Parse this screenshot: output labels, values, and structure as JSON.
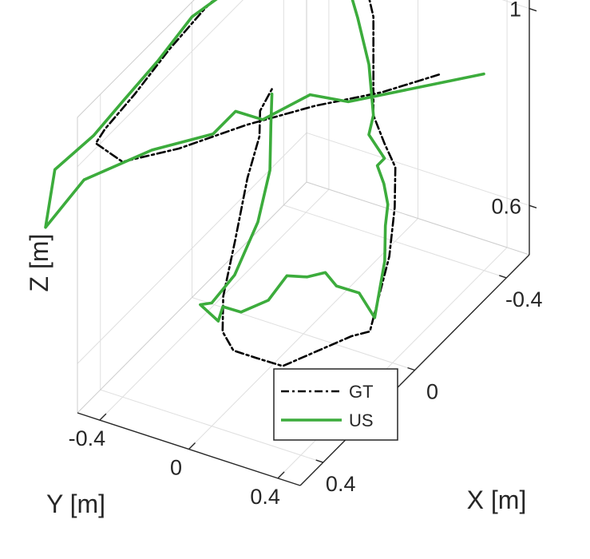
{
  "chart_data": {
    "type": "line",
    "projection": "3d",
    "title": "",
    "xlabel": "X [m]",
    "ylabel": "Y [m]",
    "zlabel": "Z [m]",
    "xlim": [
      -0.5,
      0.5
    ],
    "ylim": [
      -0.5,
      0.5
    ],
    "zlim": [
      0.5,
      1.1
    ],
    "x_ticks": [
      -0.4,
      0,
      0.4
    ],
    "x_tick_labels": [
      "-0.4",
      "0",
      "0.4"
    ],
    "y_ticks": [
      -0.4,
      0,
      0.4
    ],
    "y_tick_labels": [
      "-0.4",
      "0",
      "0.4"
    ],
    "z_ticks": [
      0.6,
      1
    ],
    "z_tick_labels": [
      "0.6",
      "1"
    ],
    "grid": true,
    "legend": {
      "position": "bottom-center",
      "entries": [
        "GT",
        "US"
      ]
    },
    "series": [
      {
        "name": "GT",
        "color": "#000000",
        "line_style": "dash-dot",
        "points": [
          [
            -0.3,
            0.3,
            0.93
          ],
          [
            -0.15,
            0.2,
            0.95
          ],
          [
            0.0,
            0.05,
            0.97
          ],
          [
            0.15,
            -0.1,
            0.98
          ],
          [
            0.3,
            -0.25,
            0.98
          ],
          [
            0.42,
            -0.38,
            0.99
          ],
          [
            0.42,
            -0.5,
            1.01
          ],
          [
            0.38,
            -0.5,
            1.02
          ],
          [
            0.25,
            -0.5,
            1.03
          ],
          [
            0.1,
            -0.5,
            1.05
          ],
          [
            -0.05,
            -0.5,
            1.06
          ],
          [
            -0.2,
            -0.5,
            1.06
          ],
          [
            -0.35,
            -0.5,
            1.05
          ],
          [
            -0.5,
            -0.45,
            1.02
          ],
          [
            -0.5,
            -0.35,
            1.0
          ],
          [
            -0.5,
            -0.25,
            0.97
          ],
          [
            -0.5,
            -0.2,
            0.88
          ],
          [
            -0.5,
            -0.2,
            0.78
          ],
          [
            -0.5,
            -0.2,
            0.68
          ],
          [
            -0.5,
            -0.15,
            0.63
          ],
          [
            -0.45,
            -0.05,
            0.62
          ],
          [
            -0.35,
            0.05,
            0.6
          ],
          [
            -0.2,
            0.18,
            0.59
          ],
          [
            -0.05,
            0.28,
            0.58
          ],
          [
            0.05,
            0.35,
            0.58
          ],
          [
            0.15,
            0.37,
            0.62
          ],
          [
            0.3,
            0.37,
            0.66
          ],
          [
            0.45,
            0.37,
            0.7
          ],
          [
            0.5,
            0.3,
            0.73
          ],
          [
            0.5,
            0.2,
            0.73
          ],
          [
            0.45,
            0.1,
            0.73
          ],
          [
            0.35,
            0.0,
            0.74
          ],
          [
            0.2,
            -0.1,
            0.77
          ],
          [
            0.05,
            -0.2,
            0.81
          ],
          [
            -0.1,
            -0.3,
            0.81
          ],
          [
            -0.2,
            -0.4,
            0.8
          ],
          [
            -0.3,
            -0.45,
            0.79
          ]
        ]
      },
      {
        "name": "US",
        "color": "#3cac3c",
        "line_style": "solid",
        "points": [
          [
            -0.35,
            0.45,
            0.93
          ],
          [
            -0.2,
            0.3,
            0.95
          ],
          [
            -0.05,
            0.15,
            0.97
          ],
          [
            0.0,
            0.03,
            0.99
          ],
          [
            0.1,
            -0.08,
            0.97
          ],
          [
            0.15,
            -0.15,
            1.0
          ],
          [
            0.2,
            -0.2,
            0.97
          ],
          [
            0.35,
            -0.32,
            0.99
          ],
          [
            0.52,
            -0.45,
            0.99
          ],
          [
            0.62,
            -0.52,
            0.93
          ],
          [
            0.55,
            -0.55,
            1.01
          ],
          [
            0.43,
            -0.5,
            1.03
          ],
          [
            0.3,
            -0.5,
            1.04
          ],
          [
            0.15,
            -0.5,
            1.05
          ],
          [
            0.0,
            -0.5,
            1.07
          ],
          [
            -0.15,
            -0.5,
            1.05
          ],
          [
            -0.3,
            -0.5,
            1.03
          ],
          [
            -0.42,
            -0.45,
            1.0
          ],
          [
            -0.47,
            -0.4,
            0.99
          ],
          [
            -0.43,
            -0.38,
            0.98
          ],
          [
            -0.48,
            -0.3,
            0.95
          ],
          [
            -0.48,
            -0.25,
            0.88
          ],
          [
            -0.5,
            -0.22,
            0.78
          ],
          [
            -0.5,
            -0.2,
            0.68
          ],
          [
            -0.48,
            -0.2,
            0.65
          ],
          [
            -0.5,
            -0.15,
            0.6
          ],
          [
            -0.42,
            -0.1,
            0.63
          ],
          [
            -0.4,
            -0.05,
            0.61
          ],
          [
            -0.32,
            0.05,
            0.62
          ],
          [
            -0.28,
            0.08,
            0.6
          ],
          [
            -0.18,
            0.18,
            0.59
          ],
          [
            -0.05,
            0.28,
            0.58
          ],
          [
            0.0,
            0.32,
            0.58
          ],
          [
            0.0,
            0.25,
            0.62
          ],
          [
            0.05,
            0.2,
            0.65
          ],
          [
            0.05,
            0.15,
            0.67
          ],
          [
            0.1,
            0.12,
            0.68
          ],
          [
            0.15,
            0.08,
            0.7
          ],
          [
            0.25,
            0.1,
            0.7
          ],
          [
            0.35,
            0.08,
            0.72
          ],
          [
            0.4,
            0.05,
            0.75
          ],
          [
            0.42,
            0.05,
            0.73
          ],
          [
            0.45,
            0.0,
            0.77
          ],
          [
            0.4,
            0.0,
            0.75
          ],
          [
            0.3,
            0.0,
            0.76
          ],
          [
            0.15,
            -0.05,
            0.79
          ],
          [
            0.0,
            -0.15,
            0.81
          ],
          [
            -0.15,
            -0.3,
            0.81
          ],
          [
            -0.3,
            -0.45,
            0.78
          ]
        ]
      }
    ]
  }
}
